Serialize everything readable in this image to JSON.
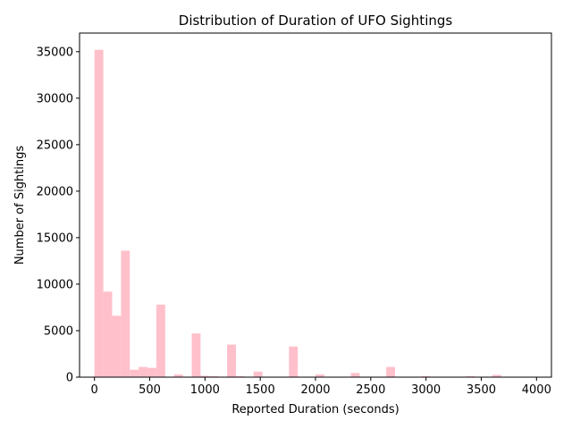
{
  "chart_data": {
    "type": "bar",
    "title": "Distribution of Duration of UFO Sightings",
    "xlabel": "Reported Duration (seconds)",
    "ylabel": "Number of Sightings",
    "xlim": [
      -135,
      4135
    ],
    "ylim": [
      0,
      37000
    ],
    "xticks": [
      0,
      500,
      1000,
      1500,
      2000,
      2500,
      3000,
      3500,
      4000
    ],
    "yticks": [
      0,
      5000,
      10000,
      15000,
      20000,
      25000,
      30000,
      35000
    ],
    "bin_width": 80,
    "bin_start": 0,
    "bar_color": "#ffc0cb",
    "grid": false,
    "values": [
      35200,
      9200,
      6600,
      13600,
      800,
      1100,
      1000,
      7800,
      50,
      300,
      50,
      4700,
      150,
      100,
      50,
      3500,
      100,
      50,
      600,
      50,
      50,
      50,
      3300,
      50,
      50,
      300,
      50,
      50,
      50,
      450,
      50,
      50,
      50,
      1100,
      50,
      50,
      50,
      100,
      50,
      50,
      50,
      50,
      100,
      50,
      50,
      250,
      50,
      50,
      50,
      50
    ]
  }
}
